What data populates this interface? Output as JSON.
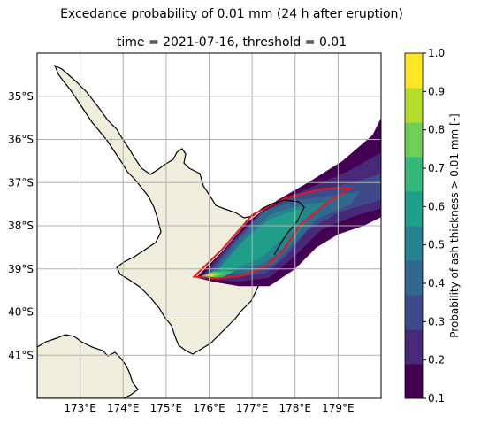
{
  "title": "Excedance probability of 0.01 mm (24 h after eruption)",
  "subtitle": "time = 2021-07-16, threshold = 0.01",
  "map": {
    "lon_ticks": [
      "173°E",
      "174°E",
      "175°E",
      "176°E",
      "177°E",
      "178°E",
      "179°E"
    ],
    "lat_ticks": [
      "35°S",
      "36°S",
      "37°S",
      "38°S",
      "39°S",
      "40°S",
      "41°S"
    ],
    "lon_values": [
      173,
      174,
      175,
      176,
      177,
      178,
      179
    ],
    "lat_values": [
      -35,
      -36,
      -37,
      -38,
      -39,
      -40,
      -41
    ],
    "extent": {
      "lon_min": 172.0,
      "lon_max": 180.0,
      "lat_min": -42.0,
      "lat_max": -34.0
    },
    "grid": true,
    "land_color": "#efeedd",
    "contour_threshold_colors": {
      "red": "#e41a1c"
    },
    "region": "New Zealand North Island"
  },
  "colorbar": {
    "label": "Probability of ash thickness > 0.01 mm [-]",
    "ticks": [
      "0.1",
      "0.2",
      "0.3",
      "0.4",
      "0.5",
      "0.6",
      "0.7",
      "0.8",
      "0.9",
      "1.0"
    ],
    "colors": [
      "#440154",
      "#482878",
      "#3e4a89",
      "#31688e",
      "#26828e",
      "#1f9e89",
      "#35b779",
      "#6ece58",
      "#b5de2b",
      "#fde725"
    ]
  },
  "chart_data": {
    "type": "heatmap",
    "title": "Excedance probability of 0.01 mm (24 h after eruption)",
    "subtitle": "time = 2021-07-16, threshold = 0.01",
    "xlabel": "",
    "ylabel": "",
    "x_ticks": [
      "173°E",
      "174°E",
      "175°E",
      "176°E",
      "177°E",
      "178°E",
      "179°E"
    ],
    "y_ticks": [
      "35°S",
      "36°S",
      "37°S",
      "38°S",
      "39°S",
      "40°S",
      "41°S"
    ],
    "colorbar_range": [
      0.1,
      1.0
    ],
    "colorbar_label": "Probability of ash thickness > 0.01 mm [-]",
    "plume_levels": [
      {
        "level": 0.1,
        "lonlat": [
          [
            175.7,
            -39.2
          ],
          [
            176.3,
            -38.6
          ],
          [
            176.9,
            -37.9
          ],
          [
            177.6,
            -37.4
          ],
          [
            178.3,
            -37.0
          ],
          [
            179.1,
            -36.5
          ],
          [
            179.8,
            -35.9
          ],
          [
            180.0,
            -35.5
          ],
          [
            180.0,
            -37.8
          ],
          [
            179.6,
            -38.0
          ],
          [
            179.0,
            -38.2
          ],
          [
            178.5,
            -38.5
          ],
          [
            178.0,
            -39.0
          ],
          [
            177.4,
            -39.4
          ],
          [
            176.7,
            -39.4
          ],
          [
            176.1,
            -39.3
          ]
        ]
      },
      {
        "level": 0.2,
        "lonlat": [
          [
            175.8,
            -39.2
          ],
          [
            176.4,
            -38.5
          ],
          [
            177.1,
            -37.8
          ],
          [
            177.8,
            -37.35
          ],
          [
            178.5,
            -37.05
          ],
          [
            179.3,
            -36.7
          ],
          [
            180.0,
            -36.3
          ],
          [
            180.0,
            -37.6
          ],
          [
            179.3,
            -37.8
          ],
          [
            178.6,
            -38.1
          ],
          [
            178.0,
            -38.7
          ],
          [
            177.4,
            -39.2
          ],
          [
            176.7,
            -39.3
          ],
          [
            176.1,
            -39.25
          ]
        ]
      },
      {
        "level": 0.3,
        "lonlat": [
          [
            175.9,
            -39.18
          ],
          [
            176.5,
            -38.45
          ],
          [
            177.2,
            -37.7
          ],
          [
            177.9,
            -37.35
          ],
          [
            178.7,
            -37.15
          ],
          [
            179.5,
            -36.95
          ],
          [
            180.0,
            -36.8
          ],
          [
            180.0,
            -37.4
          ],
          [
            179.0,
            -37.7
          ],
          [
            178.3,
            -38.1
          ],
          [
            177.8,
            -38.7
          ],
          [
            177.3,
            -39.1
          ],
          [
            176.6,
            -39.2
          ],
          [
            176.1,
            -39.2
          ]
        ]
      },
      {
        "level": 0.4,
        "lonlat": [
          [
            176.0,
            -39.15
          ],
          [
            176.6,
            -38.4
          ],
          [
            177.3,
            -37.65
          ],
          [
            178.1,
            -37.4
          ],
          [
            178.9,
            -37.3
          ],
          [
            179.5,
            -37.2
          ],
          [
            179.3,
            -37.5
          ],
          [
            178.5,
            -37.85
          ],
          [
            178.0,
            -38.4
          ],
          [
            177.5,
            -38.9
          ],
          [
            176.9,
            -39.1
          ],
          [
            176.2,
            -39.15
          ]
        ]
      },
      {
        "level": 0.5,
        "lonlat": [
          [
            176.1,
            -39.12
          ],
          [
            176.7,
            -38.4
          ],
          [
            177.4,
            -37.75
          ],
          [
            178.2,
            -37.5
          ],
          [
            178.8,
            -37.45
          ],
          [
            178.3,
            -37.85
          ],
          [
            177.9,
            -38.4
          ],
          [
            177.3,
            -38.85
          ],
          [
            176.6,
            -39.05
          ],
          [
            176.2,
            -39.12
          ]
        ]
      },
      {
        "level": 0.6,
        "lonlat": [
          [
            176.15,
            -39.1
          ],
          [
            176.8,
            -38.35
          ],
          [
            177.4,
            -37.85
          ],
          [
            178.1,
            -37.6
          ],
          [
            178.2,
            -37.75
          ],
          [
            177.7,
            -38.3
          ],
          [
            177.2,
            -38.75
          ],
          [
            176.6,
            -39.0
          ]
        ]
      },
      {
        "level": 0.7,
        "lonlat": [
          [
            175.8,
            -39.17
          ],
          [
            176.1,
            -39.05
          ],
          [
            176.6,
            -39.05
          ],
          [
            176.3,
            -39.2
          ],
          [
            175.9,
            -39.22
          ]
        ]
      },
      {
        "level": 0.8,
        "lonlat": [
          [
            175.85,
            -39.16
          ],
          [
            176.1,
            -39.08
          ],
          [
            176.35,
            -39.1
          ],
          [
            176.1,
            -39.2
          ],
          [
            175.9,
            -39.2
          ]
        ]
      },
      {
        "level": 0.9,
        "lonlat": [
          [
            175.9,
            -39.15
          ],
          [
            176.05,
            -39.1
          ],
          [
            176.2,
            -39.12
          ],
          [
            176.05,
            -39.18
          ]
        ]
      },
      {
        "level": 1.0,
        "lonlat": [
          [
            175.95,
            -39.14
          ],
          [
            176.05,
            -39.12
          ],
          [
            176.1,
            -39.15
          ],
          [
            176.0,
            -39.17
          ]
        ]
      }
    ],
    "red_contour_lonlat": [
      [
        175.65,
        -39.18
      ],
      [
        176.3,
        -38.55
      ],
      [
        177.0,
        -37.75
      ],
      [
        177.8,
        -37.35
      ],
      [
        178.6,
        -37.15
      ],
      [
        179.3,
        -37.12
      ],
      [
        178.7,
        -37.5
      ],
      [
        178.1,
        -38.0
      ],
      [
        177.7,
        -38.6
      ],
      [
        177.3,
        -38.95
      ],
      [
        176.8,
        -39.15
      ],
      [
        176.2,
        -39.22
      ]
    ]
  }
}
